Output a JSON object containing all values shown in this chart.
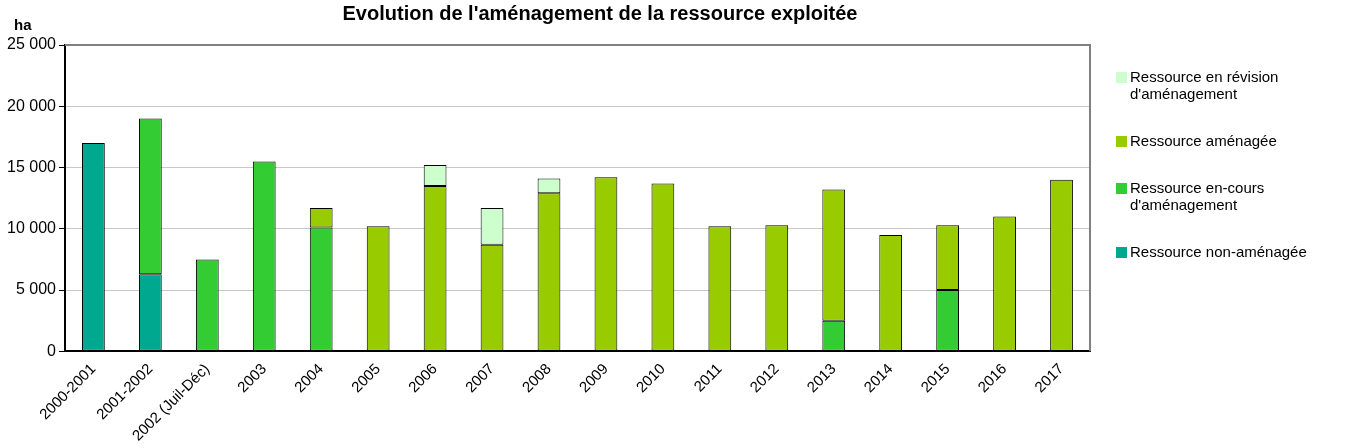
{
  "chart_data": {
    "type": "bar",
    "title": "Evolution de l'aménagement de la ressource exploitée",
    "ylabel": "ha",
    "categories": [
      "2000-2001",
      "2001-2002",
      "2002 (Juil-Déc)",
      "2003",
      "2004",
      "2005",
      "2006",
      "2007",
      "2008",
      "2009",
      "2010",
      "2011",
      "2012",
      "2013",
      "2014",
      "2015",
      "2016",
      "2017"
    ],
    "stacked": true,
    "series": [
      {
        "name": "Ressource non-aménagée",
        "color": "#00a890",
        "values": [
          17000,
          6300,
          null,
          null,
          null,
          null,
          null,
          null,
          null,
          null,
          null,
          null,
          null,
          null,
          null,
          null,
          null,
          null
        ]
      },
      {
        "name": "Ressource en-cours d'aménagement",
        "color": "#33cc33",
        "values": [
          null,
          12700,
          7500,
          15500,
          10100,
          null,
          null,
          null,
          null,
          null,
          null,
          null,
          null,
          2500,
          null,
          5000,
          null,
          null
        ]
      },
      {
        "name": "Ressource aménagée",
        "color": "#99cc00",
        "values": [
          null,
          null,
          null,
          null,
          1600,
          10200,
          13500,
          8700,
          12900,
          14200,
          13700,
          10200,
          10300,
          10700,
          9500,
          5300,
          11000,
          14000
        ]
      },
      {
        "name": "Ressource en révision d'aménagement",
        "color": "#ccffcc",
        "values": [
          null,
          null,
          null,
          null,
          null,
          null,
          1700,
          3000,
          1200,
          null,
          null,
          null,
          null,
          null,
          null,
          null,
          null,
          null
        ]
      }
    ],
    "ylim": [
      0,
      25000
    ],
    "yticks": [
      0,
      {
        "value": 5000,
        "label": "5 000"
      },
      {
        "value": 10000,
        "label": "10 000"
      },
      {
        "value": 15000,
        "label": "15 000"
      },
      {
        "value": 20000,
        "label": "20 000"
      },
      {
        "value": 25000,
        "label": "25 000"
      }
    ],
    "grid": "y",
    "legend": "right"
  }
}
